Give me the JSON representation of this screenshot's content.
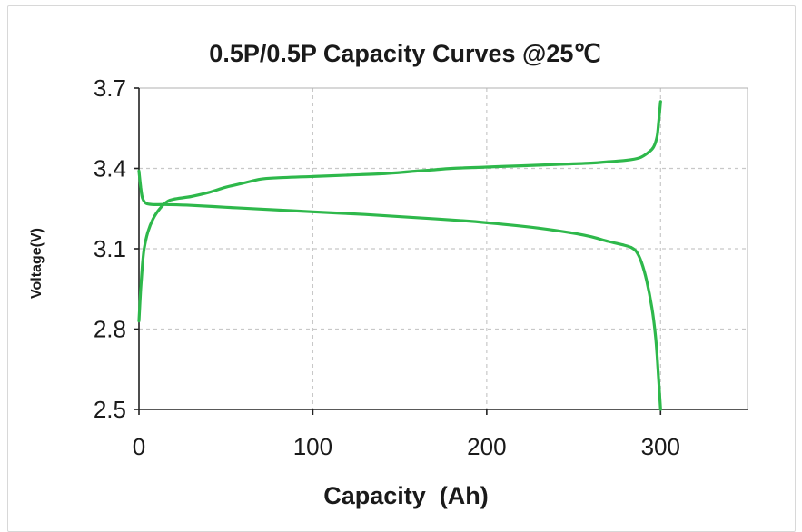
{
  "chart_data": {
    "type": "line",
    "title": "0.5P/0.5P Capacity Curves @25℃",
    "xlabel": "Capacity  (Ah)",
    "ylabel": "Voltage(V)",
    "xlim": [
      0,
      350
    ],
    "ylim": [
      2.5,
      3.7
    ],
    "xticks": [
      0,
      100,
      200,
      300
    ],
    "yticks": [
      2.5,
      2.8,
      3.1,
      3.4,
      3.7
    ],
    "xtick_labels": [
      "0",
      "100",
      "200",
      "300"
    ],
    "ytick_labels": [
      "2.5",
      "2.8",
      "3.1",
      "3.4",
      "3.7"
    ],
    "grid": true,
    "colors": {
      "series": "#2eb84b",
      "grid": "#c8c8c8",
      "axis": "#222222"
    },
    "series": [
      {
        "x": [
          0,
          1,
          2,
          3,
          5,
          8,
          12,
          16,
          20,
          30,
          40,
          50,
          60,
          70,
          80,
          100,
          120,
          140,
          160,
          170,
          180,
          200,
          220,
          240,
          260,
          270,
          280,
          288,
          293,
          296,
          298,
          299,
          300
        ],
        "y": [
          2.83,
          2.95,
          3.04,
          3.1,
          3.16,
          3.21,
          3.25,
          3.275,
          3.285,
          3.295,
          3.31,
          3.33,
          3.345,
          3.36,
          3.365,
          3.37,
          3.375,
          3.38,
          3.39,
          3.395,
          3.4,
          3.405,
          3.41,
          3.415,
          3.42,
          3.425,
          3.43,
          3.44,
          3.46,
          3.48,
          3.52,
          3.58,
          3.65
        ]
      },
      {
        "x": [
          0,
          1,
          2,
          4,
          8,
          15,
          30,
          50,
          70,
          100,
          130,
          160,
          190,
          210,
          230,
          250,
          260,
          270,
          278,
          283,
          286,
          289,
          292,
          295,
          297,
          298,
          299,
          300
        ],
        "y": [
          3.39,
          3.33,
          3.29,
          3.27,
          3.265,
          3.265,
          3.262,
          3.255,
          3.248,
          3.238,
          3.228,
          3.216,
          3.203,
          3.191,
          3.177,
          3.158,
          3.145,
          3.127,
          3.115,
          3.105,
          3.09,
          3.05,
          2.98,
          2.88,
          2.78,
          2.7,
          2.6,
          2.5
        ]
      }
    ]
  }
}
